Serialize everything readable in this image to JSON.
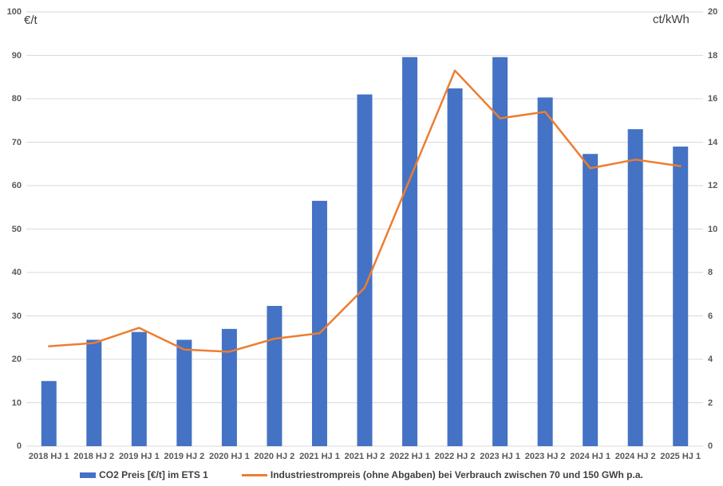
{
  "chart_data": {
    "type": "combo",
    "title": "",
    "categories": [
      "2018 HJ 1",
      "2018 HJ 2",
      "2019 HJ 1",
      "2019 HJ 2",
      "2020 HJ 1",
      "2020 HJ 2",
      "2021 HJ 1",
      "2021 HJ 2",
      "2022 HJ 1",
      "2022 HJ 2",
      "2023 HJ 1",
      "2023 HJ 2",
      "2024 HJ 1",
      "2024 HJ 2",
      "2025 HJ 1"
    ],
    "series": [
      {
        "name": "CO2 Preis [€/t] im ETS 1",
        "type": "bar",
        "axis": "left",
        "color": "#4472C4",
        "values": [
          15.0,
          24.5,
          26.3,
          24.5,
          27.0,
          32.3,
          56.5,
          81.0,
          89.6,
          82.4,
          89.6,
          80.3,
          67.3,
          73.0,
          69.0
        ]
      },
      {
        "name": "Industriestrompreis (ohne Abgaben) bei Verbrauch zwischen 70 und  150 GWh p.a.",
        "type": "line",
        "axis": "right",
        "color": "#ED7D31",
        "values": [
          4.6,
          4.75,
          5.45,
          4.45,
          4.35,
          4.95,
          5.2,
          7.3,
          12.3,
          17.3,
          15.1,
          15.4,
          12.8,
          13.2,
          12.9
        ]
      }
    ],
    "left_axis": {
      "label": "€/t",
      "min": 0,
      "max": 100,
      "step": 10
    },
    "right_axis": {
      "label": "ct/kWh",
      "min": 0,
      "max": 20,
      "step": 2
    },
    "grid": "horizontal",
    "legend_position": "bottom",
    "colors": {
      "grid": "#D9D9D9",
      "axis_line": "#D9D9D9",
      "tick_text": "#595959",
      "legend_text": "#404040",
      "background": "#FFFFFF"
    }
  }
}
